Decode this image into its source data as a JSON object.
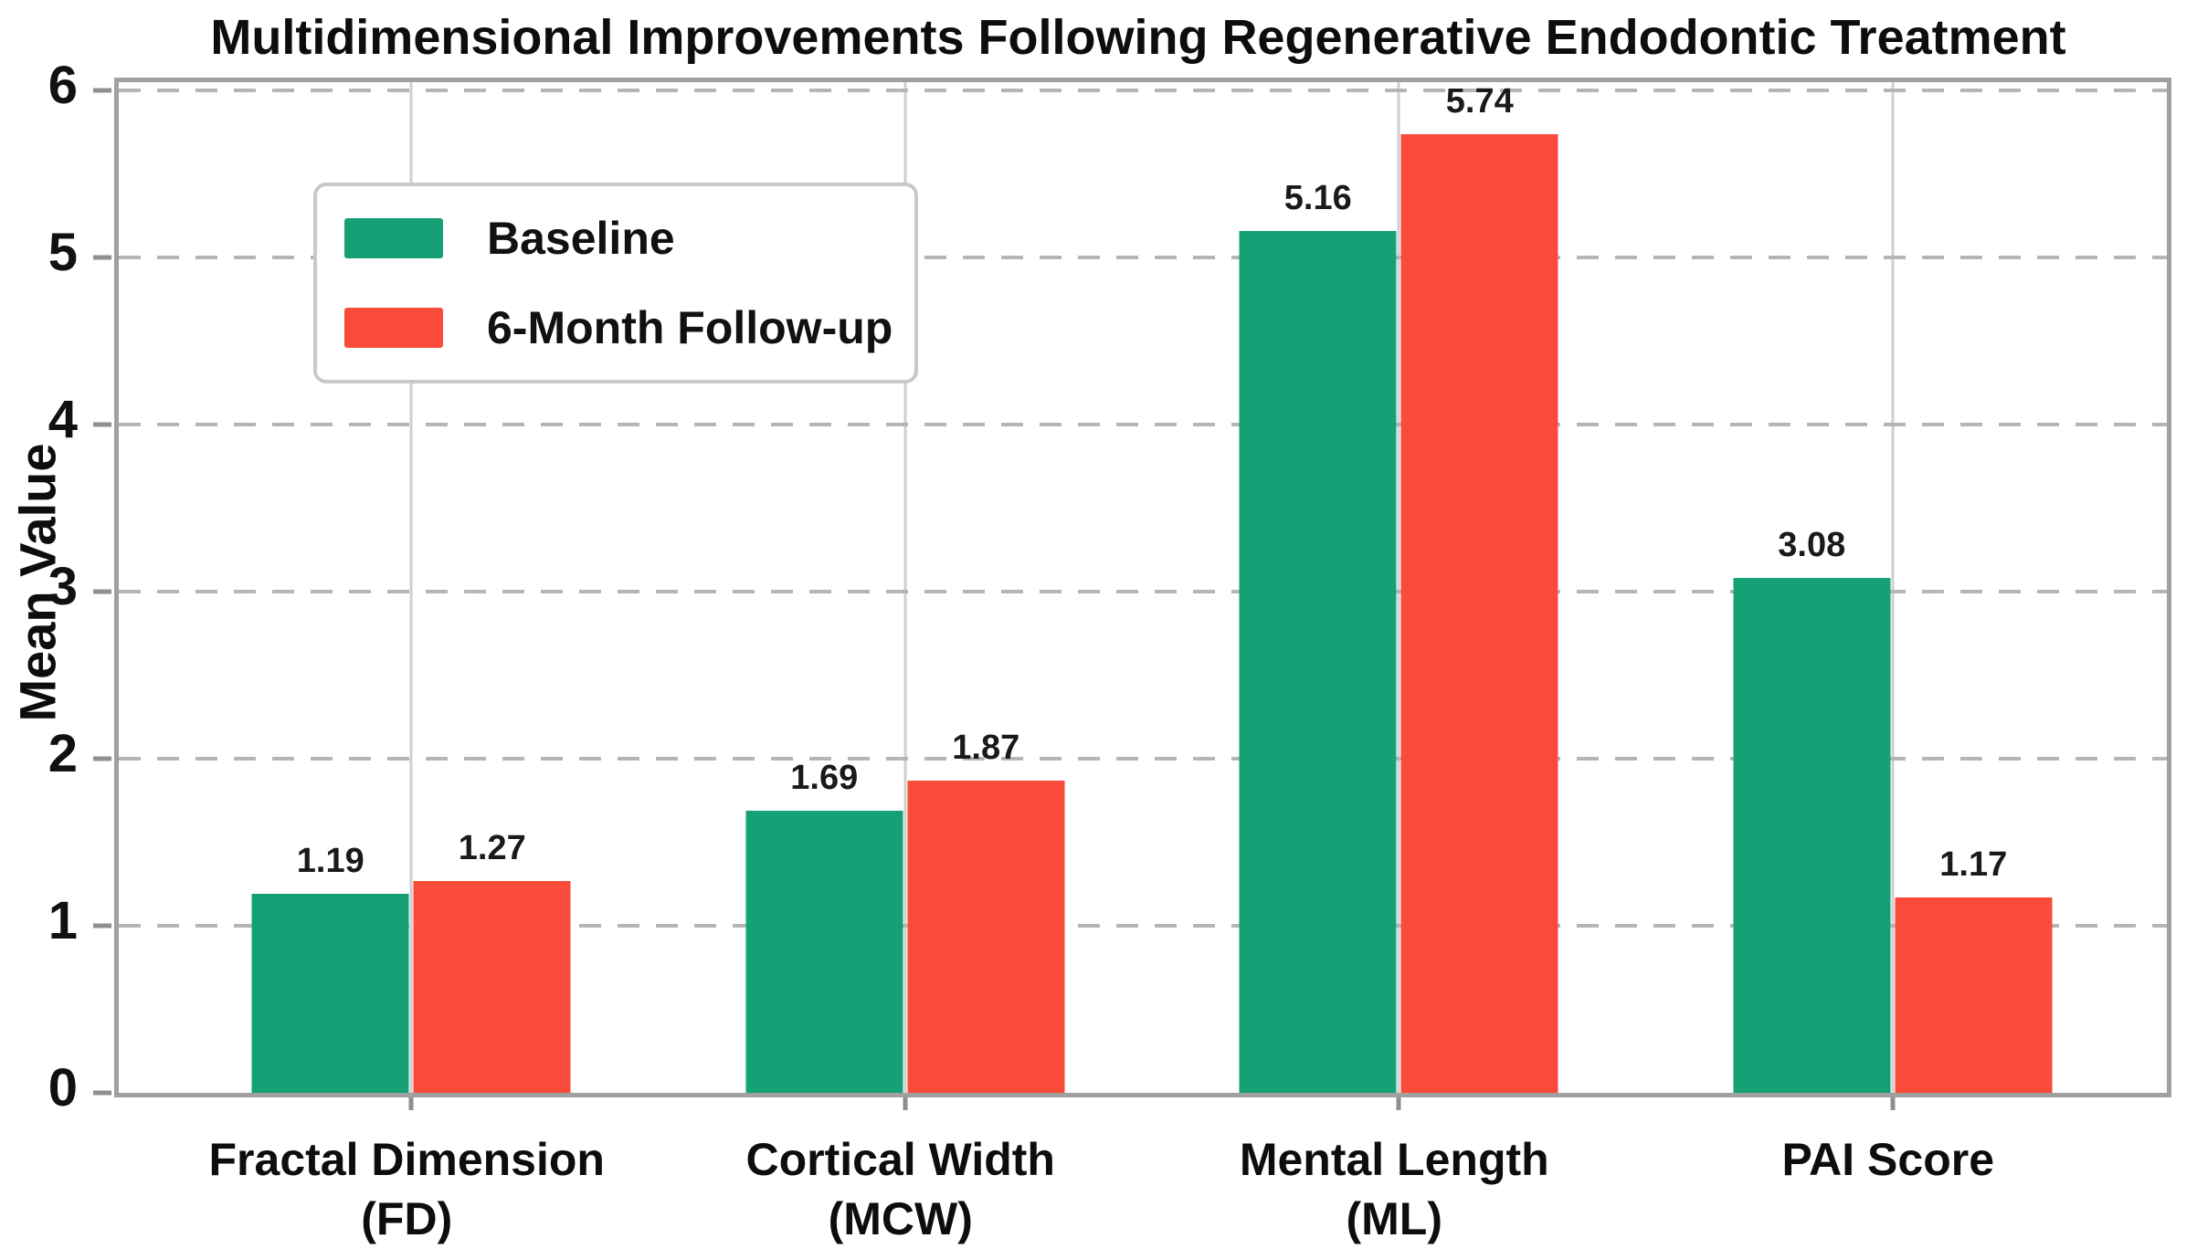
{
  "chart_data": {
    "type": "bar",
    "title": "Multidimensional Improvements Following Regenerative Endodontic Treatment",
    "xlabel": "",
    "ylabel": "Mean Value",
    "ylim": [
      0,
      6
    ],
    "yticks": [
      0,
      1,
      2,
      3,
      4,
      5,
      6
    ],
    "grid": true,
    "legend_position": "upper-left",
    "categories": [
      "Fractal Dimension\n(FD)",
      "Cortical Width\n(MCW)",
      "Mental Length\n(ML)",
      "PAI Score"
    ],
    "series": [
      {
        "name": "Baseline",
        "color": "#16a076",
        "values": [
          1.19,
          1.69,
          5.16,
          3.08
        ]
      },
      {
        "name": "6-Month Follow-up",
        "color": "#fa4b3a",
        "values": [
          1.27,
          1.87,
          5.74,
          1.17
        ]
      }
    ],
    "value_label_decimals": 2
  }
}
